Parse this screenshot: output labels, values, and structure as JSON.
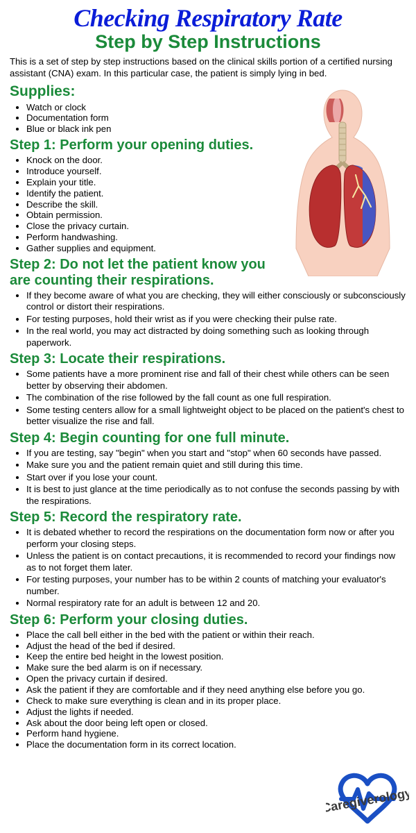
{
  "title": "Checking Respiratory Rate",
  "subtitle": "Step by Step Instructions",
  "intro": "This is a set of step by step instructions based on the clinical skills portion of a certified nursing assistant (CNA) exam. In this particular case, the patient is simply lying in bed.",
  "colors": {
    "title": "#0b1dd8",
    "heading": "#1b8a3a",
    "body": "#000000",
    "logo_heart": "#1a4fc4",
    "anatomy_lung_left": "#b82f2f",
    "anatomy_lung_right_blue": "#3b5ad1",
    "anatomy_lung_right_red": "#c23a3a",
    "anatomy_body": "#f8d1c0",
    "anatomy_trachea": "#d9c9a8",
    "anatomy_nasal": "#c34848"
  },
  "supplies_heading": "Supplies:",
  "supplies_items": [
    "Watch or clock",
    "Documentation form",
    "Blue or black ink pen"
  ],
  "step1_heading": "Step 1: Perform your opening duties.",
  "step1_items": [
    "Knock on the door.",
    "Introduce yourself.",
    "Explain your title.",
    "Identify the patient.",
    "Describe the skill.",
    "Obtain permission.",
    "Close the privacy curtain.",
    "Perform handwashing.",
    "Gather supplies and equipment."
  ],
  "step2_heading": "Step 2: Do not let the patient know you are counting their respirations.",
  "step2_items": [
    "If they become aware of what you are checking, they will either consciously or subconsciously control or distort their respirations.",
    "For testing purposes, hold their wrist as if you were checking their pulse rate.",
    "In the real world, you may act distracted by doing something such as looking through paperwork."
  ],
  "step3_heading": "Step 3: Locate their respirations.",
  "step3_items": [
    "Some patients have a more prominent rise and fall of their chest while others can be seen better by observing their abdomen.",
    "The combination of the rise followed by the fall count as one full respiration.",
    "Some testing centers allow for a small lightweight object to be placed on the patient's chest to better visualize the rise and fall."
  ],
  "step4_heading": "Step 4: Begin counting for one full minute.",
  "step4_items": [
    "If you are testing, say \"begin\" when you start and \"stop\" when 60 seconds have passed.",
    "Make sure you and the patient remain quiet and still during this time.",
    "Start over if you lose your count.",
    "It is best to just glance at the time periodically as to not confuse the seconds passing by with the respirations."
  ],
  "step5_heading": "Step 5: Record the respiratory rate.",
  "step5_items": [
    "It is debated whether to record the respirations on the documentation form now or after you perform your closing steps.",
    "Unless the patient is on contact precautions, it is recommended to record your findings now as to not forget them later.",
    "For testing purposes, your number has to be within 2 counts of matching your evaluator's number.",
    "Normal respiratory rate for an adult is between 12 and 20."
  ],
  "step6_heading": "Step 6: Perform your closing duties.",
  "step6_items": [
    "Place the call bell either in the bed with the patient or within their reach.",
    "Adjust the head of the bed if desired.",
    "Keep the entire bed height in the lowest position.",
    "Make sure the bed alarm is on if necessary.",
    "Open the privacy curtain if desired.",
    "Ask the patient if they are comfortable and if they need anything else before you go.",
    "Check to make sure everything is clean and in its proper place.",
    "Adjust the lights if needed.",
    "Ask about the door being left open or closed.",
    "Perform hand hygiene.",
    "Place the documentation form in its correct location."
  ],
  "logo_text": "Caregiverology"
}
